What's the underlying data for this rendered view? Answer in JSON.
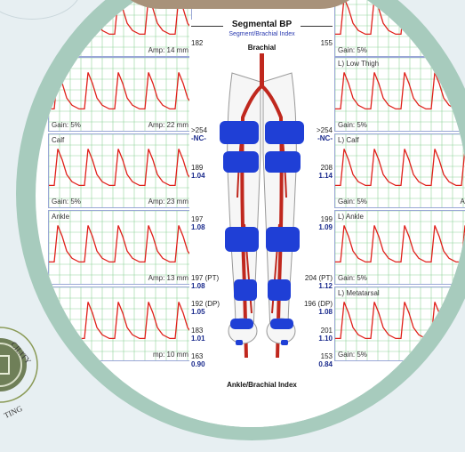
{
  "header": {
    "title": "Segmental BP",
    "subtitle": "Segment/Brachial Index",
    "brachial": "Brachial",
    "footer": "Ankle/Brachial Index"
  },
  "left_waves": [
    {
      "label": "",
      "gain": "",
      "amp": "Amp: 14 mm"
    },
    {
      "label": "h",
      "gain": "Gain: 5%",
      "amp": "Amp: 22 mm"
    },
    {
      "label": "Calf",
      "gain": "Gain: 5%",
      "amp": "Amp: 23 mm"
    },
    {
      "label": "Ankle",
      "gain": "",
      "amp": "Amp: 13 mm"
    },
    {
      "label": "l",
      "gain": "",
      "amp": "mp: 10 mm"
    }
  ],
  "right_waves": [
    {
      "label": "",
      "gain": "Gain: 5%",
      "amp": ""
    },
    {
      "label": "L) Low Thigh",
      "gain": "Gain: 5%",
      "amp": "Amp"
    },
    {
      "label": "L) Calf",
      "gain": "Gain: 5%",
      "amp": "Amp"
    },
    {
      "label": "L) Ankle",
      "gain": "Gain: 5%",
      "amp": "Amp"
    },
    {
      "label": "L) Metatarsal",
      "gain": "Gain: 5%",
      "amp": ""
    }
  ],
  "left_values": [
    {
      "top": "182",
      "idx": ""
    },
    {
      "top": ">254",
      "idx": "-NC-"
    },
    {
      "top": "189",
      "idx": "1.04"
    },
    {
      "top": "197",
      "idx": "1.08"
    },
    {
      "top": "197 (PT)",
      "idx": "1.08"
    },
    {
      "top": "192 (DP)",
      "idx": "1.05"
    },
    {
      "top": "183",
      "idx": "1.01"
    },
    {
      "top": "163",
      "idx": "0.90"
    }
  ],
  "right_values": [
    {
      "top": "155",
      "idx": ""
    },
    {
      "top": ">254",
      "idx": "-NC-"
    },
    {
      "top": "208",
      "idx": "1.14"
    },
    {
      "top": "199",
      "idx": "1.09"
    },
    {
      "top": "204 (PT)",
      "idx": "1.12"
    },
    {
      "top": "196 (DP)",
      "idx": "1.08"
    },
    {
      "top": "201",
      "idx": "1.10"
    },
    {
      "top": "153",
      "idx": "0.84"
    }
  ],
  "logo": {
    "arc_top": "CILITY",
    "arc_bottom": "TING"
  },
  "colors": {
    "ring": "#a7cbbd",
    "cuff": "#1f3fd6",
    "artery": "#c0281e",
    "trace": "#e0201a",
    "grid": "#8fd29a"
  }
}
